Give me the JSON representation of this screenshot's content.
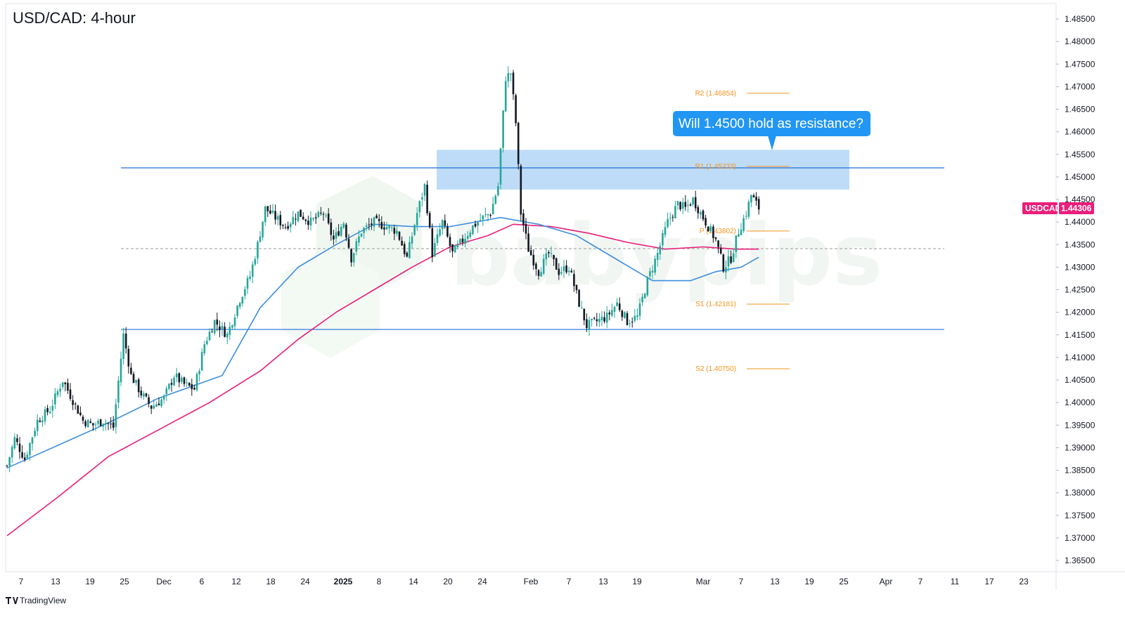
{
  "chart_data": {
    "type": "candlestick",
    "title": "USD/CAD: 4-hour",
    "symbol": "USDCAD",
    "last_price": "1.44306",
    "ylim": [
      1.3625,
      1.4875
    ],
    "y_ticks": [
      "1.48500",
      "1.48000",
      "1.47500",
      "1.47000",
      "1.46500",
      "1.46000",
      "1.45500",
      "1.45000",
      "1.44500",
      "1.44000",
      "1.43500",
      "1.43000",
      "1.42500",
      "1.42000",
      "1.41500",
      "1.41000",
      "1.40500",
      "1.40000",
      "1.39500",
      "1.39000",
      "1.38500",
      "1.38000",
      "1.37500",
      "1.37000",
      "1.36500"
    ],
    "x_ticks": [
      {
        "label": "7",
        "bold": false
      },
      {
        "label": "13",
        "bold": false
      },
      {
        "label": "19",
        "bold": false
      },
      {
        "label": "25",
        "bold": false
      },
      {
        "label": "Dec",
        "bold": false
      },
      {
        "label": "6",
        "bold": false
      },
      {
        "label": "12",
        "bold": false
      },
      {
        "label": "18",
        "bold": false
      },
      {
        "label": "24",
        "bold": false
      },
      {
        "label": "2025",
        "bold": true
      },
      {
        "label": "8",
        "bold": false
      },
      {
        "label": "14",
        "bold": false
      },
      {
        "label": "20",
        "bold": false
      },
      {
        "label": "24",
        "bold": false
      },
      {
        "label": "Feb",
        "bold": false
      },
      {
        "label": "7",
        "bold": false
      },
      {
        "label": "13",
        "bold": false
      },
      {
        "label": "19",
        "bold": false
      },
      {
        "label": "Mar",
        "bold": false
      },
      {
        "label": "7",
        "bold": false
      },
      {
        "label": "13",
        "bold": false
      },
      {
        "label": "19",
        "bold": false
      },
      {
        "label": "25",
        "bold": false
      },
      {
        "label": "Apr",
        "bold": false
      },
      {
        "label": "7",
        "bold": false
      },
      {
        "label": "11",
        "bold": false
      },
      {
        "label": "17",
        "bold": false
      },
      {
        "label": "23",
        "bold": false
      }
    ],
    "price_path": [
      [
        0,
        1.386
      ],
      [
        3,
        1.392
      ],
      [
        7,
        1.3875
      ],
      [
        12,
        1.396
      ],
      [
        17,
        1.3985
      ],
      [
        22,
        1.405
      ],
      [
        26,
        1.4005
      ],
      [
        30,
        1.396
      ],
      [
        34,
        1.395
      ],
      [
        38,
        1.396
      ],
      [
        42,
        1.3945
      ],
      [
        46,
        1.415
      ],
      [
        49,
        1.406
      ],
      [
        53,
        1.402
      ],
      [
        57,
        1.399
      ],
      [
        62,
        1.401
      ],
      [
        66,
        1.406
      ],
      [
        70,
        1.404
      ],
      [
        74,
        1.403
      ],
      [
        78,
        1.413
      ],
      [
        82,
        1.418
      ],
      [
        87,
        1.415
      ],
      [
        92,
        1.423
      ],
      [
        96,
        1.428
      ],
      [
        99,
        1.435
      ],
      [
        102,
        1.443
      ],
      [
        106,
        1.441
      ],
      [
        110,
        1.439
      ],
      [
        115,
        1.442
      ],
      [
        120,
        1.44
      ],
      [
        125,
        1.442
      ],
      [
        129,
        1.436
      ],
      [
        133,
        1.44
      ],
      [
        136,
        1.432
      ],
      [
        140,
        1.438
      ],
      [
        145,
        1.44
      ],
      [
        150,
        1.439
      ],
      [
        154,
        1.438
      ],
      [
        158,
        1.432
      ],
      [
        162,
        1.442
      ],
      [
        165,
        1.448
      ],
      [
        168,
        1.433
      ],
      [
        172,
        1.44
      ],
      [
        176,
        1.433
      ],
      [
        180,
        1.436
      ],
      [
        184,
        1.439
      ],
      [
        188,
        1.441
      ],
      [
        191,
        1.442
      ],
      [
        194,
        1.448
      ],
      [
        197,
        1.472
      ],
      [
        199,
        1.473
      ],
      [
        201,
        1.462
      ],
      [
        203,
        1.442
      ],
      [
        206,
        1.434
      ],
      [
        210,
        1.429
      ],
      [
        214,
        1.433
      ],
      [
        218,
        1.429
      ],
      [
        222,
        1.43
      ],
      [
        226,
        1.422
      ],
      [
        229,
        1.417
      ],
      [
        233,
        1.418
      ],
      [
        237,
        1.419
      ],
      [
        241,
        1.422
      ],
      [
        245,
        1.418
      ],
      [
        249,
        1.419
      ],
      [
        253,
        1.427
      ],
      [
        257,
        1.433
      ],
      [
        261,
        1.44
      ],
      [
        265,
        1.444
      ],
      [
        268,
        1.443
      ],
      [
        271,
        1.445
      ],
      [
        274,
        1.442
      ],
      [
        277,
        1.439
      ],
      [
        280,
        1.436
      ],
      [
        283,
        1.43
      ],
      [
        286,
        1.432
      ],
      [
        289,
        1.438
      ],
      [
        292,
        1.442
      ],
      [
        294,
        1.446
      ],
      [
        296,
        1.444
      ],
      [
        297,
        1.4431
      ]
    ],
    "ema_blue_path": [
      [
        0,
        1.3855
      ],
      [
        40,
        1.3955
      ],
      [
        60,
        1.401
      ],
      [
        85,
        1.406
      ],
      [
        100,
        1.421
      ],
      [
        115,
        1.43
      ],
      [
        130,
        1.435
      ],
      [
        145,
        1.4395
      ],
      [
        160,
        1.439
      ],
      [
        175,
        1.439
      ],
      [
        195,
        1.441
      ],
      [
        210,
        1.4395
      ],
      [
        225,
        1.437
      ],
      [
        240,
        1.432
      ],
      [
        255,
        1.427
      ],
      [
        270,
        1.427
      ],
      [
        280,
        1.429
      ],
      [
        290,
        1.43
      ],
      [
        297,
        1.4322
      ]
    ],
    "ema_pink_path": [
      [
        0,
        1.3705
      ],
      [
        20,
        1.379
      ],
      [
        40,
        1.388
      ],
      [
        60,
        1.394
      ],
      [
        80,
        1.4
      ],
      [
        100,
        1.407
      ],
      [
        115,
        1.414
      ],
      [
        130,
        1.42
      ],
      [
        145,
        1.425
      ],
      [
        160,
        1.43
      ],
      [
        175,
        1.4345
      ],
      [
        190,
        1.437
      ],
      [
        200,
        1.4395
      ],
      [
        215,
        1.439
      ],
      [
        230,
        1.4375
      ],
      [
        245,
        1.4355
      ],
      [
        260,
        1.434
      ],
      [
        275,
        1.4345
      ],
      [
        288,
        1.434
      ],
      [
        297,
        1.434
      ]
    ],
    "horizontal_lines": [
      {
        "price": 1.452,
        "color": "#1e6fd9",
        "style": "solid"
      },
      {
        "price": 1.4162,
        "color": "#1e6fd9",
        "style": "solid"
      },
      {
        "price": 1.4341,
        "color": "#9a9a9a",
        "style": "dashed"
      }
    ],
    "resistance_zone": {
      "price_top": 1.456,
      "price_bottom": 1.4472,
      "color": "#bbdaf7"
    },
    "pivot_levels": [
      {
        "label": "R2 (1.46854)",
        "price": 1.46854
      },
      {
        "label": "R1 (1.45233)",
        "price": 1.45233
      },
      {
        "label": "P (1.43802)",
        "price": 1.43802
      },
      {
        "label": "S1 (1.42181)",
        "price": 1.42181
      },
      {
        "label": "S2 (1.40750)",
        "price": 1.4075
      }
    ],
    "callout": {
      "text": "Will 1.4500 hold as resistance?",
      "color": "#2196f3"
    },
    "colors": {
      "up": "#26a69a",
      "down": "#131722",
      "ema_blue": "#3d8fe0",
      "ema_pink": "#e91e7a",
      "pivot": "#f7931e",
      "price_tag": "#e91e7a"
    }
  },
  "watermark": "babypips",
  "footer": {
    "brand": "TradingView"
  }
}
